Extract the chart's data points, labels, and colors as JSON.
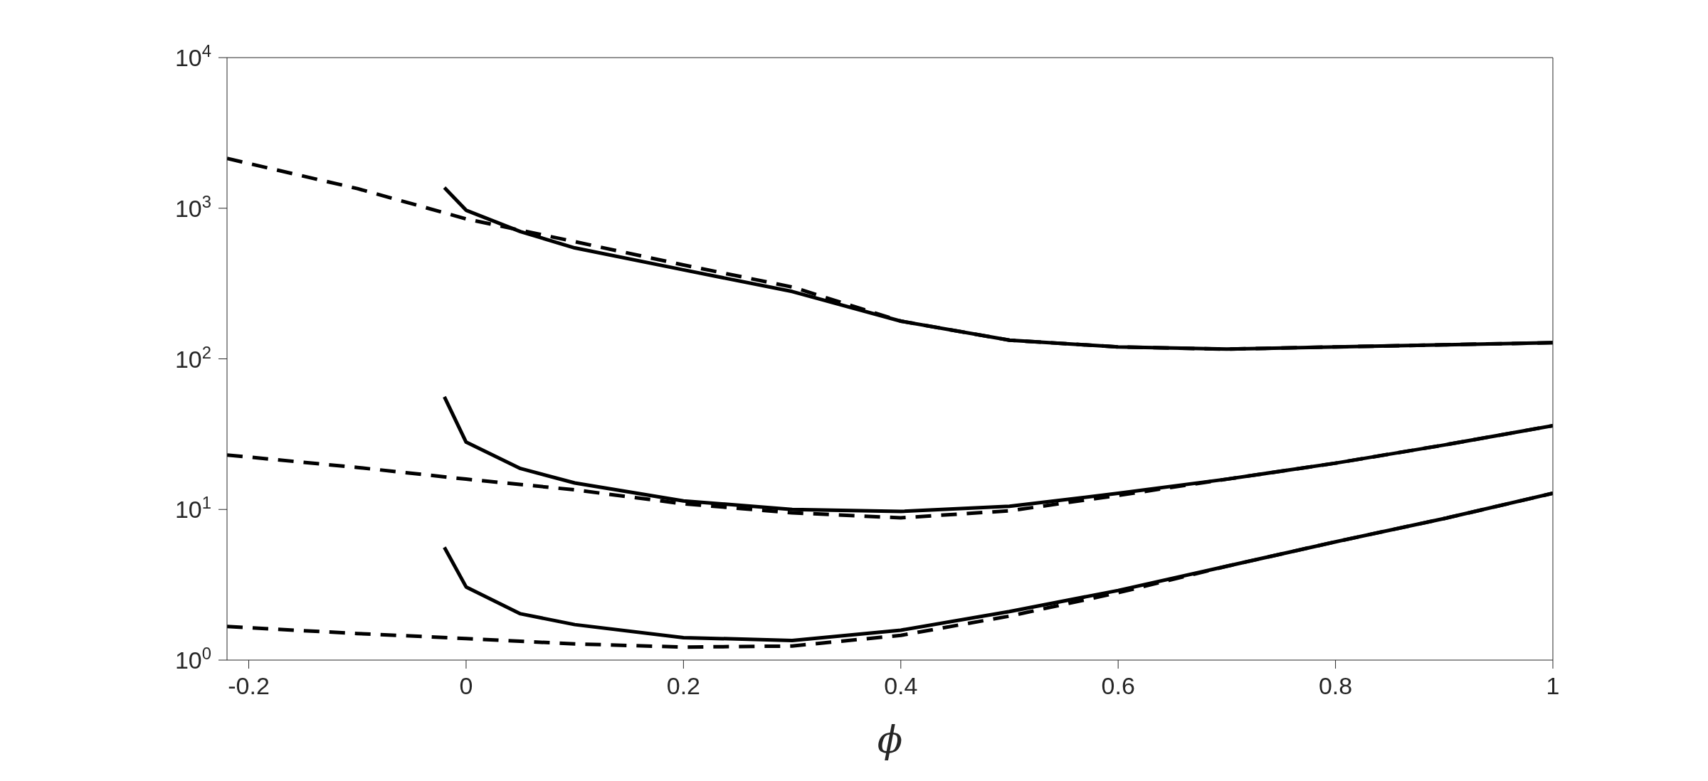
{
  "chart_data": {
    "type": "line",
    "xlabel": "ϕ",
    "log": true,
    "grid": false,
    "legend": false,
    "marker": "none",
    "xlim": [
      -0.22,
      1
    ],
    "xticks": [
      -0.2,
      0,
      0.2,
      0.4,
      0.6,
      0.8,
      1
    ],
    "ylim": [
      1,
      10000
    ],
    "yticks": [
      {
        "value": 1,
        "label": "10$^{0}$"
      },
      {
        "value": 10,
        "label": "10$^{1}$"
      },
      {
        "value": 100,
        "label": "10$^{2}$"
      },
      {
        "value": 1000,
        "label": "10$^{3}$"
      },
      {
        "value": 10000,
        "label": "10$^{4}$"
      }
    ],
    "series": [
      {
        "color": "#000000",
        "line_style": "dashed",
        "x": [
          -0.22,
          -0.1,
          0,
          0.1,
          0.2,
          0.3,
          0.4,
          0.5,
          0.6,
          0.7,
          0.8,
          0.9,
          1
        ],
        "values": [
          2140,
          1350,
          850,
          600,
          420,
          300,
          178,
          133,
          120,
          116,
          120,
          124,
          128
        ]
      },
      {
        "color": "#000000",
        "line_style": "solid",
        "x": [
          -0.02,
          0,
          0.05,
          0.1,
          0.2,
          0.3,
          0.4,
          0.5,
          0.6,
          0.7,
          0.8,
          0.9,
          1
        ],
        "values": [
          1370,
          970,
          700,
          545,
          390,
          280,
          178,
          133,
          120,
          116,
          120,
          124,
          128
        ]
      },
      {
        "color": "#000000",
        "line_style": "dashed",
        "x": [
          -0.22,
          -0.1,
          0,
          0.1,
          0.2,
          0.3,
          0.4,
          0.5,
          0.6,
          0.7,
          0.8,
          0.9,
          1
        ],
        "values": [
          23,
          19,
          15.9,
          13.5,
          10.9,
          9.5,
          8.8,
          9.8,
          12.4,
          15.9,
          20.3,
          26.8,
          36
        ]
      },
      {
        "color": "#000000",
        "line_style": "solid",
        "x": [
          -0.02,
          0,
          0.05,
          0.1,
          0.2,
          0.3,
          0.4,
          0.5,
          0.6,
          0.7,
          0.8,
          0.9,
          1
        ],
        "values": [
          56,
          28,
          18.7,
          15,
          11.4,
          10,
          9.7,
          10.5,
          12.8,
          15.9,
          20.3,
          26.8,
          36
        ]
      },
      {
        "color": "#000000",
        "line_style": "dashed",
        "x": [
          -0.22,
          -0.1,
          0,
          0.1,
          0.2,
          0.3,
          0.4,
          0.5,
          0.6,
          0.7,
          0.8,
          0.9,
          1
        ],
        "values": [
          1.67,
          1.5,
          1.39,
          1.28,
          1.22,
          1.24,
          1.46,
          1.96,
          2.8,
          4.2,
          6.1,
          8.7,
          12.8
        ]
      },
      {
        "color": "#000000",
        "line_style": "solid",
        "x": [
          -0.02,
          0,
          0.05,
          0.1,
          0.2,
          0.3,
          0.4,
          0.5,
          0.6,
          0.7,
          0.8,
          0.9,
          1
        ],
        "values": [
          5.6,
          3.06,
          2.03,
          1.72,
          1.41,
          1.35,
          1.58,
          2.1,
          2.9,
          4.2,
          6.1,
          8.7,
          12.8
        ]
      }
    ]
  }
}
